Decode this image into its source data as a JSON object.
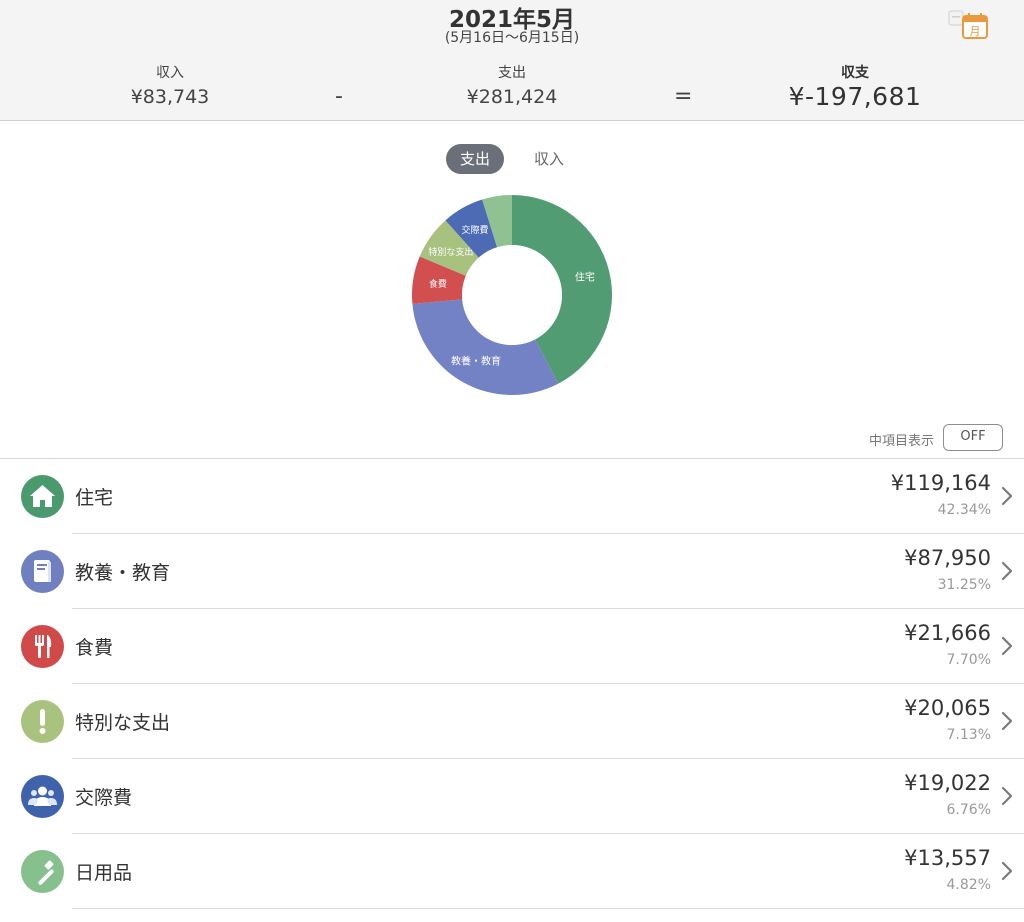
{
  "header": {
    "month": "2021年5月",
    "period": "(5月16日〜6月15日)",
    "calendar_icon": "calendar-month-icon",
    "calendar_icon_text": "月",
    "income_label": "収入",
    "income_value": "¥83,743",
    "minus": "-",
    "expense_label": "支出",
    "expense_value": "¥281,424",
    "equals": "=",
    "balance_label": "収支",
    "balance_value": "¥-197,681"
  },
  "toggle": {
    "expense": "支出",
    "income": "収入",
    "selected": "支出"
  },
  "chart_data": {
    "type": "pie",
    "style": "donut",
    "slices": [
      {
        "label": "住宅",
        "value": 42.34,
        "color": "#529c74"
      },
      {
        "label": "教養・教育",
        "value": 31.25,
        "color": "#7282c4"
      },
      {
        "label": "食費",
        "value": 7.7,
        "color": "#d24f4f"
      },
      {
        "label": "特別な支出",
        "value": 7.13,
        "color": "#a7c17f"
      },
      {
        "label": "交際費",
        "value": 6.76,
        "color": "#4d6bb4"
      },
      {
        "label": "",
        "value": 4.82,
        "color": "#8fc193"
      }
    ]
  },
  "subitem": {
    "label": "中項目表示",
    "button": "OFF"
  },
  "categories": [
    {
      "name": "住宅",
      "amount": "¥119,164",
      "percent": "42.34%",
      "icon": "house-icon",
      "color": "#4b9a6e"
    },
    {
      "name": "教養・教育",
      "amount": "¥87,950",
      "percent": "31.25%",
      "icon": "book-icon",
      "color": "#6f7fc0"
    },
    {
      "name": "食費",
      "amount": "¥21,666",
      "percent": "7.70%",
      "icon": "fork-knife-icon",
      "color": "#d14a4a"
    },
    {
      "name": "特別な支出",
      "amount": "¥20,065",
      "percent": "7.13%",
      "icon": "exclamation-icon",
      "color": "#a9c37e"
    },
    {
      "name": "交際費",
      "amount": "¥19,022",
      "percent": "6.76%",
      "icon": "people-icon",
      "color": "#3f62ad"
    },
    {
      "name": "日用品",
      "amount": "¥13,557",
      "percent": "4.82%",
      "icon": "toothbrush-icon",
      "color": "#86c08c"
    }
  ]
}
